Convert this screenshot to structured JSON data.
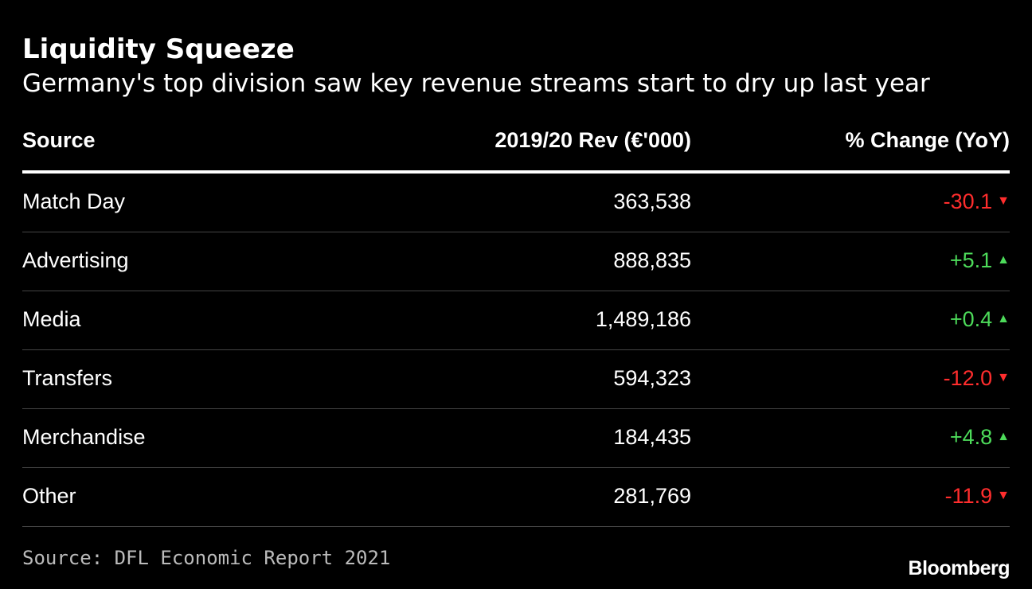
{
  "title": "Liquidity Squeeze",
  "subtitle": "Germany's top division saw key revenue streams start to dry up last year",
  "source": "Source: DFL Economic Report 2021",
  "logo": "Bloomberg",
  "colors": {
    "background": "#000000",
    "text": "#ffffff",
    "negative": "#ff2d2d",
    "positive": "#4ddb5a",
    "divider": "#444444"
  },
  "chart_data": {
    "type": "table",
    "columns": [
      "Source",
      "2019/20 Rev (€'000)",
      "% Change (YoY)"
    ],
    "rows": [
      {
        "source": "Match Day",
        "revenue": "363,538",
        "change": "-30.1",
        "direction": "down"
      },
      {
        "source": "Advertising",
        "revenue": "888,835",
        "change": "+5.1",
        "direction": "up"
      },
      {
        "source": "Media",
        "revenue": "1,489,186",
        "change": "+0.4",
        "direction": "up"
      },
      {
        "source": "Transfers",
        "revenue": "594,323",
        "change": "-12.0",
        "direction": "down"
      },
      {
        "source": "Merchandise",
        "revenue": "184,435",
        "change": "+4.8",
        "direction": "up"
      },
      {
        "source": "Other",
        "revenue": "281,769",
        "change": "-11.9",
        "direction": "down"
      }
    ]
  }
}
